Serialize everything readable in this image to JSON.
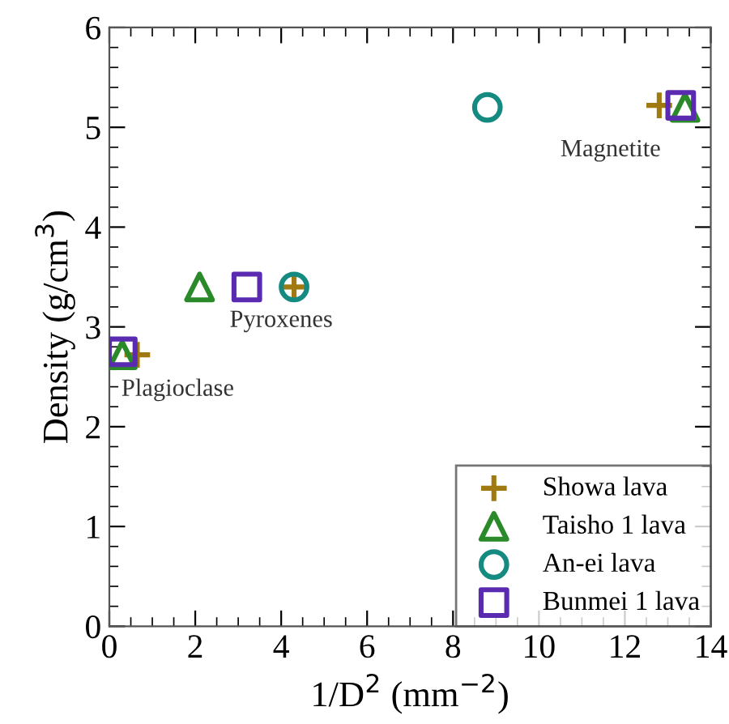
{
  "chart_data": {
    "type": "scatter",
    "xlabel": "1/D$^{2}$ (mm$^{−2}$)",
    "ylabel": "Density (g/cm$^{3}$)",
    "xlim": [
      0,
      14
    ],
    "xticks": [
      0,
      2,
      4,
      6,
      8,
      10,
      12,
      14
    ],
    "ylim": [
      0,
      6
    ],
    "yticks": [
      0,
      1,
      2,
      3,
      4,
      5,
      6
    ],
    "grid": false,
    "legend": "bottom right",
    "series": [
      {
        "name": "Showa lava",
        "color": "#a07a10",
        "marker": "cross",
        "x": [
          0.65,
          4.3,
          12.8
        ],
        "values": [
          2.72,
          3.4,
          5.22
        ]
      },
      {
        "name": "Taisho 1 lava",
        "color": "#2a8a2a",
        "marker": "triangle",
        "x": [
          0.3,
          2.1,
          13.4
        ],
        "values": [
          2.72,
          3.4,
          5.2
        ]
      },
      {
        "name": "An-ei lava",
        "color": "#158a80",
        "marker": "circle",
        "x": [
          4.3,
          8.8
        ],
        "values": [
          3.4,
          5.2
        ]
      },
      {
        "name": "Bunmei 1 lava",
        "color": "#5a2ab0",
        "marker": "square",
        "x": [
          0.3,
          3.2,
          13.3
        ],
        "values": [
          2.75,
          3.4,
          5.22
        ]
      }
    ],
    "annotations": [
      "Plagioclase",
      "Pyroxenes",
      "Magnetite"
    ]
  }
}
